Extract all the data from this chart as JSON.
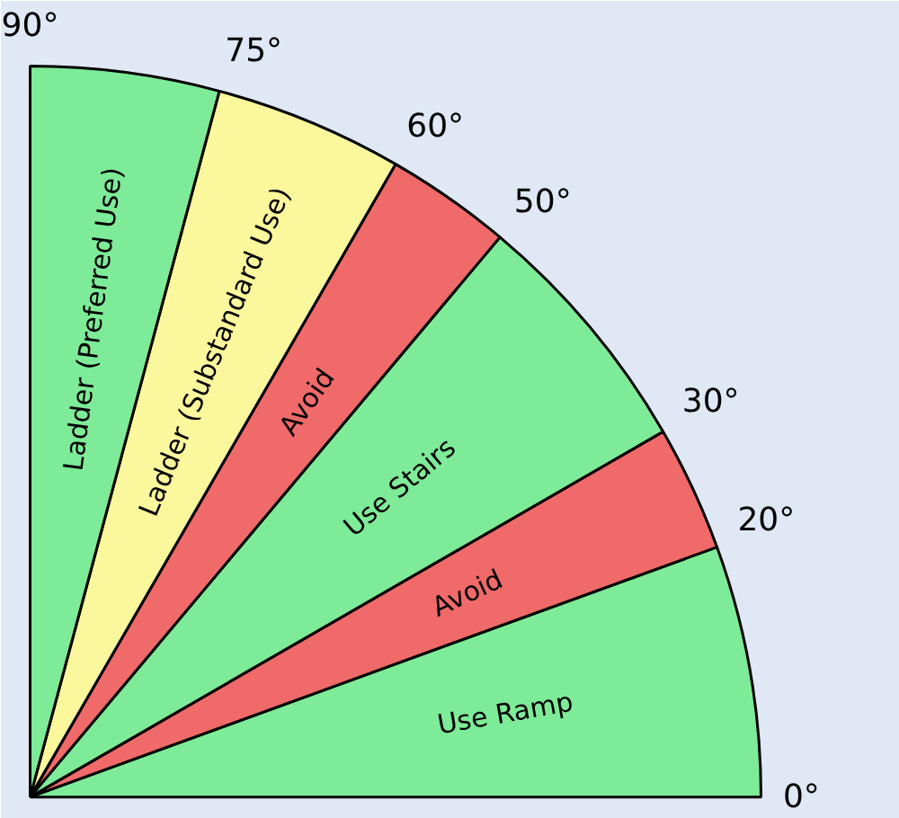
{
  "chart_data": {
    "type": "pie",
    "categories": [
      "Use Ramp",
      "Avoid",
      "Use Stairs",
      "Avoid",
      "Ladder (Substandard Use)",
      "Ladder (Preferred Use)"
    ],
    "values": [
      22.22,
      11.11,
      22.22,
      11.11,
      16.67,
      16.67
    ],
    "colors": [
      "#7eeb98",
      "#f06a6a",
      "#7eeb98",
      "#f06a6a",
      "#fbf79c",
      "#7eeb98"
    ],
    "annotations": [
      "0°",
      "20°",
      "30°",
      "50°",
      "60°",
      "75°",
      "90°"
    ]
  }
}
